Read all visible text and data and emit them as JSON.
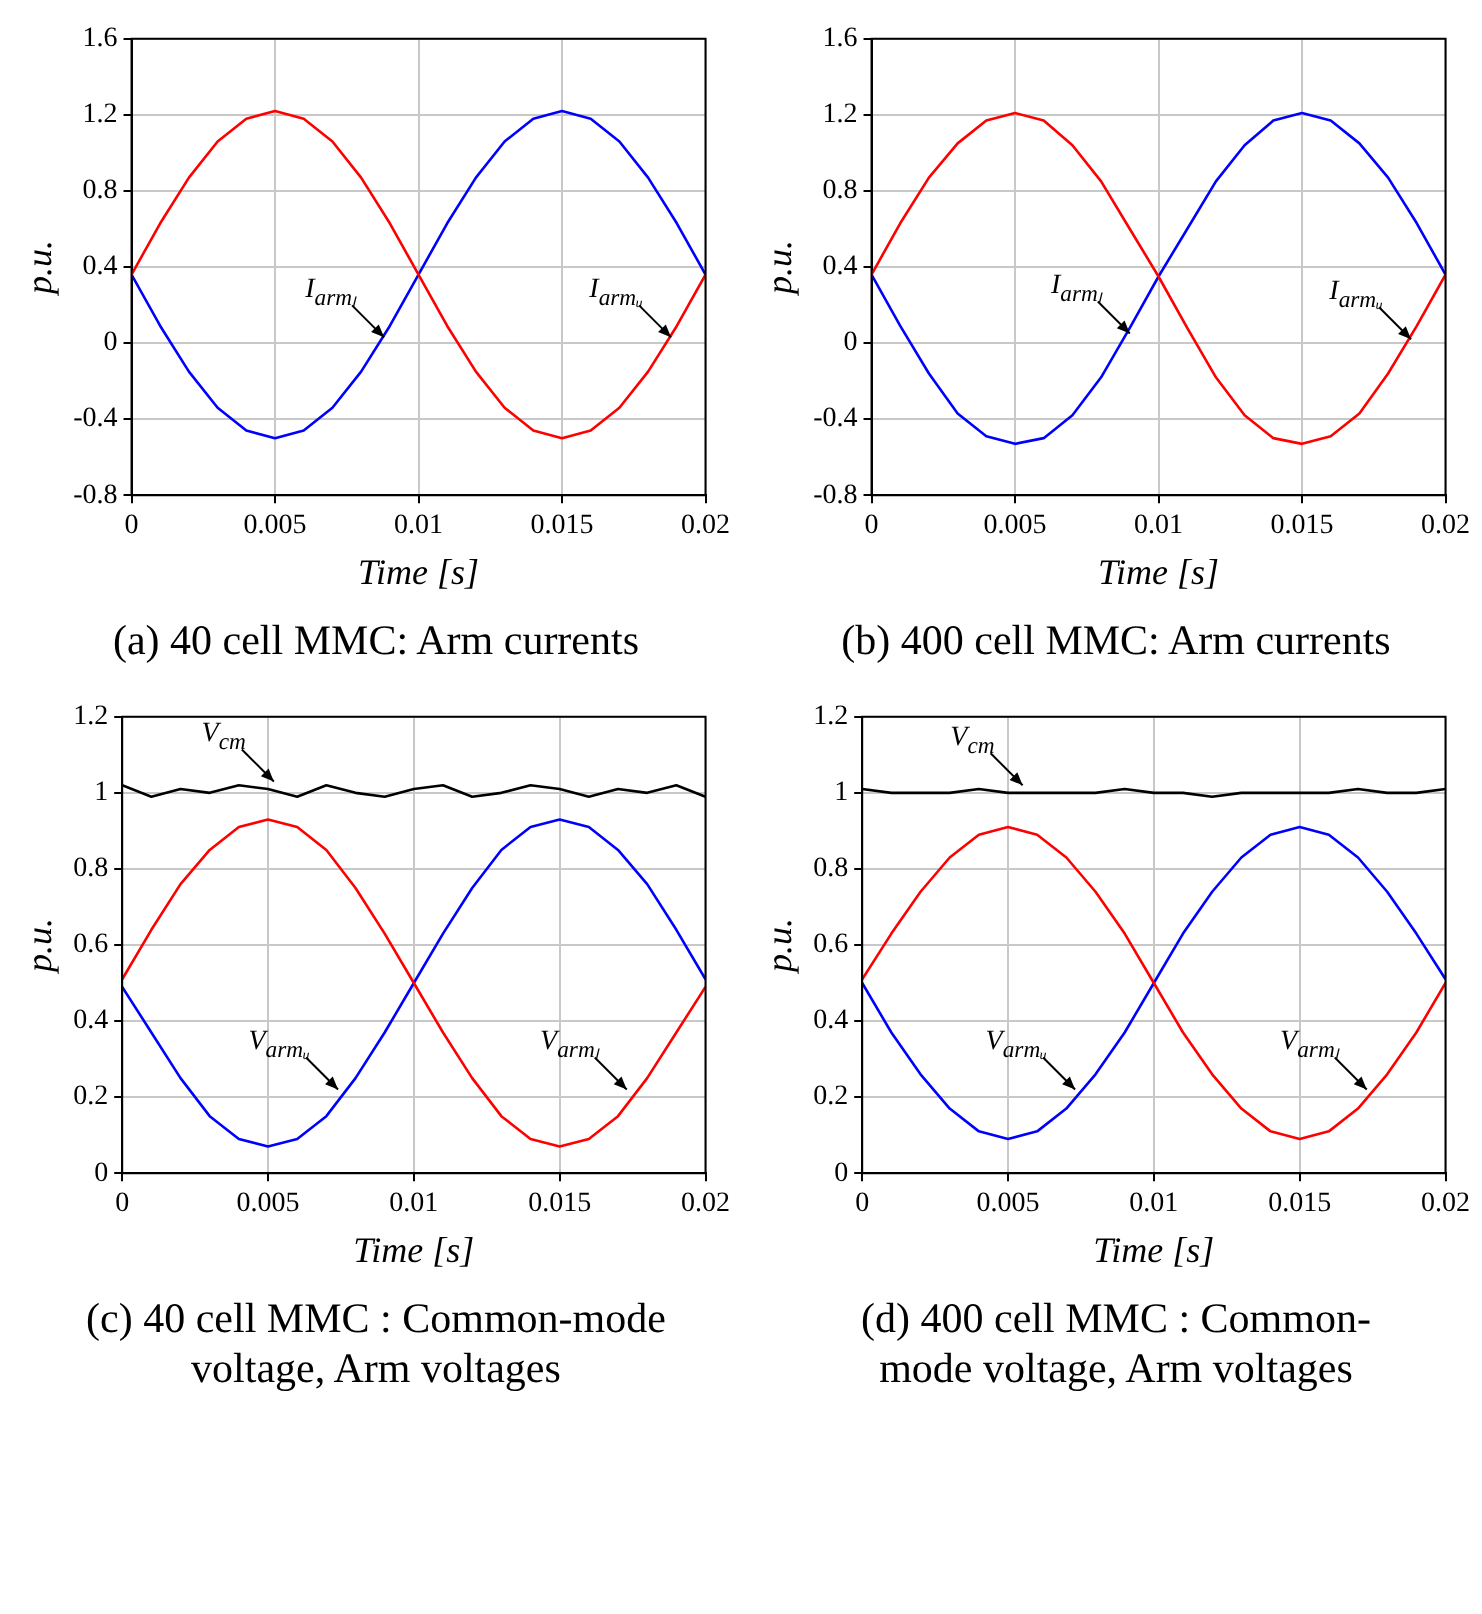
{
  "chart_data": [
    {
      "type": "line",
      "title": "(a) 40 cell MMC: Arm currents",
      "xlabel": "Time [s]",
      "ylabel": "p.u.",
      "x": [
        0,
        0.001,
        0.002,
        0.003,
        0.004,
        0.005,
        0.006,
        0.007,
        0.008,
        0.009,
        0.01,
        0.011,
        0.012,
        0.013,
        0.014,
        0.015,
        0.016,
        0.017,
        0.018,
        0.019,
        0.02
      ],
      "xlim": [
        0,
        0.02
      ],
      "xticks": [
        0,
        0.005,
        0.01,
        0.015,
        0.02
      ],
      "ylim": [
        -0.8,
        1.6
      ],
      "yticks": [
        -0.8,
        -0.4,
        0,
        0.4,
        0.8,
        1.2,
        1.6
      ],
      "grid": true,
      "series": [
        {
          "color": "#ff0000",
          "values": [
            0.36,
            0.63,
            0.87,
            1.06,
            1.18,
            1.22,
            1.18,
            1.06,
            0.87,
            0.63,
            0.36,
            0.09,
            -0.15,
            -0.34,
            -0.46,
            -0.5,
            -0.46,
            -0.34,
            -0.15,
            0.09,
            0.36
          ]
        },
        {
          "color": "#0000ff",
          "values": [
            0.36,
            0.09,
            -0.15,
            -0.34,
            -0.46,
            -0.5,
            -0.46,
            -0.34,
            -0.15,
            0.09,
            0.36,
            0.63,
            0.87,
            1.06,
            1.18,
            1.22,
            1.18,
            1.06,
            0.87,
            0.63,
            0.36
          ]
        }
      ],
      "annotations": [
        {
          "text": "I$_{armₗ}$",
          "x": 0.0088,
          "y": 0.03
        },
        {
          "text": "I$_{armᵤ}$",
          "x": 0.0188,
          "y": 0.03
        }
      ]
    },
    {
      "type": "line",
      "title": "(b) 400 cell MMC: Arm currents",
      "xlabel": "Time [s]",
      "ylabel": "p.u.",
      "x": [
        0,
        0.001,
        0.002,
        0.003,
        0.004,
        0.005,
        0.006,
        0.007,
        0.008,
        0.009,
        0.01,
        0.011,
        0.012,
        0.013,
        0.014,
        0.015,
        0.016,
        0.017,
        0.018,
        0.019,
        0.02
      ],
      "xlim": [
        0,
        0.02
      ],
      "xticks": [
        0,
        0.005,
        0.01,
        0.015,
        0.02
      ],
      "ylim": [
        -0.8,
        1.6
      ],
      "yticks": [
        -0.8,
        -0.4,
        0,
        0.4,
        0.8,
        1.2,
        1.6
      ],
      "grid": true,
      "series": [
        {
          "color": "#ff0000",
          "values": [
            0.36,
            0.63,
            0.87,
            1.05,
            1.17,
            1.21,
            1.17,
            1.04,
            0.85,
            0.6,
            0.35,
            0.08,
            -0.18,
            -0.38,
            -0.5,
            -0.53,
            -0.49,
            -0.37,
            -0.16,
            0.09,
            0.36
          ]
        },
        {
          "color": "#0000ff",
          "values": [
            0.36,
            0.09,
            -0.16,
            -0.37,
            -0.49,
            -0.53,
            -0.5,
            -0.38,
            -0.18,
            0.08,
            0.35,
            0.6,
            0.85,
            1.04,
            1.17,
            1.21,
            1.17,
            1.05,
            0.87,
            0.63,
            0.36
          ]
        }
      ],
      "annotations": [
        {
          "text": "I$_{armₗ}$",
          "x": 0.009,
          "y": 0.05
        },
        {
          "text": "I$_{armᵤ}$",
          "x": 0.0188,
          "y": 0.02
        }
      ]
    },
    {
      "type": "line",
      "title": "(c) 40 cell MMC : Common-mode voltage, Arm voltages",
      "xlabel": "Time [s]",
      "ylabel": "p.u.",
      "x": [
        0,
        0.001,
        0.002,
        0.003,
        0.004,
        0.005,
        0.006,
        0.007,
        0.008,
        0.009,
        0.01,
        0.011,
        0.012,
        0.013,
        0.014,
        0.015,
        0.016,
        0.017,
        0.018,
        0.019,
        0.02
      ],
      "xlim": [
        0,
        0.02
      ],
      "xticks": [
        0,
        0.005,
        0.01,
        0.015,
        0.02
      ],
      "ylim": [
        0,
        1.2
      ],
      "yticks": [
        0,
        0.2,
        0.4,
        0.6,
        0.8,
        1,
        1.2
      ],
      "grid": true,
      "series": [
        {
          "color": "#000000",
          "values": [
            1.02,
            0.99,
            1.01,
            1.0,
            1.02,
            1.01,
            0.99,
            1.02,
            1.0,
            0.99,
            1.01,
            1.02,
            0.99,
            1.0,
            1.02,
            1.01,
            0.99,
            1.01,
            1.0,
            1.02,
            0.99
          ]
        },
        {
          "color": "#ff0000",
          "values": [
            0.51,
            0.64,
            0.76,
            0.85,
            0.91,
            0.93,
            0.91,
            0.85,
            0.75,
            0.63,
            0.5,
            0.37,
            0.25,
            0.15,
            0.09,
            0.07,
            0.09,
            0.15,
            0.25,
            0.37,
            0.49
          ]
        },
        {
          "color": "#0000ff",
          "values": [
            0.49,
            0.37,
            0.25,
            0.15,
            0.09,
            0.07,
            0.09,
            0.15,
            0.25,
            0.37,
            0.5,
            0.63,
            0.75,
            0.85,
            0.91,
            0.93,
            0.91,
            0.85,
            0.76,
            0.64,
            0.51
          ]
        }
      ],
      "annotations": [
        {
          "text": "V$_{cm}$",
          "x": 0.0052,
          "y": 1.03
        },
        {
          "text": "V$_{armᵤ}$",
          "x": 0.0074,
          "y": 0.22
        },
        {
          "text": "V$_{armₗ}$",
          "x": 0.0173,
          "y": 0.22
        }
      ]
    },
    {
      "type": "line",
      "title": "(d) 400 cell MMC : Common-mode voltage, Arm voltages",
      "xlabel": "Time [s]",
      "ylabel": "p.u.",
      "x": [
        0,
        0.001,
        0.002,
        0.003,
        0.004,
        0.005,
        0.006,
        0.007,
        0.008,
        0.009,
        0.01,
        0.011,
        0.012,
        0.013,
        0.014,
        0.015,
        0.016,
        0.017,
        0.018,
        0.019,
        0.02
      ],
      "xlim": [
        0,
        0.02
      ],
      "xticks": [
        0,
        0.005,
        0.01,
        0.015,
        0.02
      ],
      "ylim": [
        0,
        1.2
      ],
      "yticks": [
        0,
        0.2,
        0.4,
        0.6,
        0.8,
        1,
        1.2
      ],
      "grid": true,
      "series": [
        {
          "color": "#000000",
          "values": [
            1.01,
            1.0,
            1.0,
            1.0,
            1.01,
            1.0,
            1.0,
            1.0,
            1.0,
            1.01,
            1.0,
            1.0,
            0.99,
            1.0,
            1.0,
            1.0,
            1.0,
            1.01,
            1.0,
            1.0,
            1.01
          ]
        },
        {
          "color": "#ff0000",
          "values": [
            0.51,
            0.63,
            0.74,
            0.83,
            0.89,
            0.91,
            0.89,
            0.83,
            0.74,
            0.63,
            0.5,
            0.37,
            0.26,
            0.17,
            0.11,
            0.09,
            0.11,
            0.17,
            0.26,
            0.37,
            0.5
          ]
        },
        {
          "color": "#0000ff",
          "values": [
            0.5,
            0.37,
            0.26,
            0.17,
            0.11,
            0.09,
            0.11,
            0.17,
            0.26,
            0.37,
            0.5,
            0.63,
            0.74,
            0.83,
            0.89,
            0.91,
            0.89,
            0.83,
            0.74,
            0.63,
            0.51
          ]
        }
      ],
      "annotations": [
        {
          "text": "V$_{cm}$",
          "x": 0.0055,
          "y": 1.02
        },
        {
          "text": "V$_{armᵤ}$",
          "x": 0.0073,
          "y": 0.22
        },
        {
          "text": "V$_{armₗ}$",
          "x": 0.0173,
          "y": 0.22
        }
      ]
    }
  ]
}
